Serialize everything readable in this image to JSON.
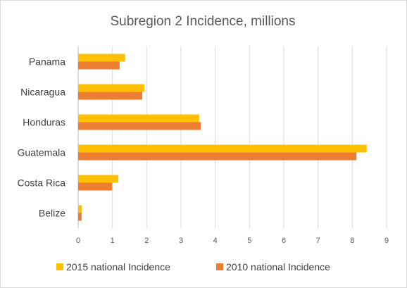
{
  "chart_data": {
    "type": "bar",
    "orientation": "horizontal",
    "title": "Subregion 2 Incidence, millions",
    "xlabel": "",
    "ylabel": "",
    "categories": [
      "Panama",
      "Nicaragua",
      "Honduras",
      "Guatemala",
      "Costa Rica",
      "Belize"
    ],
    "series": [
      {
        "name": "2015 national Incidence",
        "color": "#FFC000",
        "values": [
          1.37,
          1.93,
          3.53,
          8.42,
          1.17,
          0.11
        ]
      },
      {
        "name": "2010 national Incidence",
        "color": "#ED7D31",
        "values": [
          1.21,
          1.87,
          3.58,
          8.12,
          0.99,
          0.1
        ]
      }
    ],
    "xlim": [
      0,
      9
    ],
    "xticks": [
      "0",
      "1",
      "2",
      "3",
      "4",
      "5",
      "6",
      "7",
      "8",
      "9"
    ],
    "grid": true,
    "legend": "bottom"
  }
}
